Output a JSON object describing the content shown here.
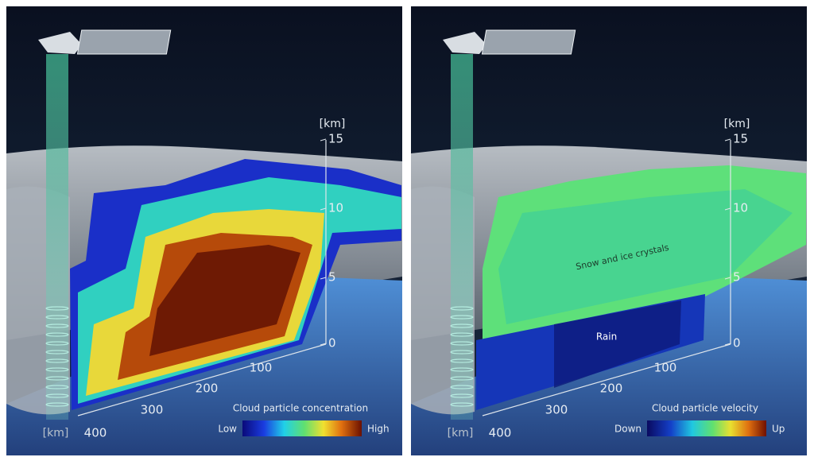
{
  "panels": [
    {
      "height_unit": "[km]",
      "height_ticks": [
        "15",
        "10",
        "5",
        "0"
      ],
      "distance_unit": "[km]",
      "distance_ticks": [
        "100",
        "200",
        "300",
        "400"
      ],
      "colorbar": {
        "title": "Cloud particle concentration",
        "low": "Low",
        "high": "High"
      }
    },
    {
      "height_unit": "[km]",
      "height_ticks": [
        "15",
        "10",
        "5",
        "0"
      ],
      "distance_unit": "[km]",
      "distance_ticks": [
        "100",
        "200",
        "300",
        "400"
      ],
      "colorbar": {
        "title": "Cloud particle velocity",
        "low": "Down",
        "high": "Up"
      },
      "annotations": [
        "Snow and ice crystals",
        "Rain"
      ]
    }
  ]
}
